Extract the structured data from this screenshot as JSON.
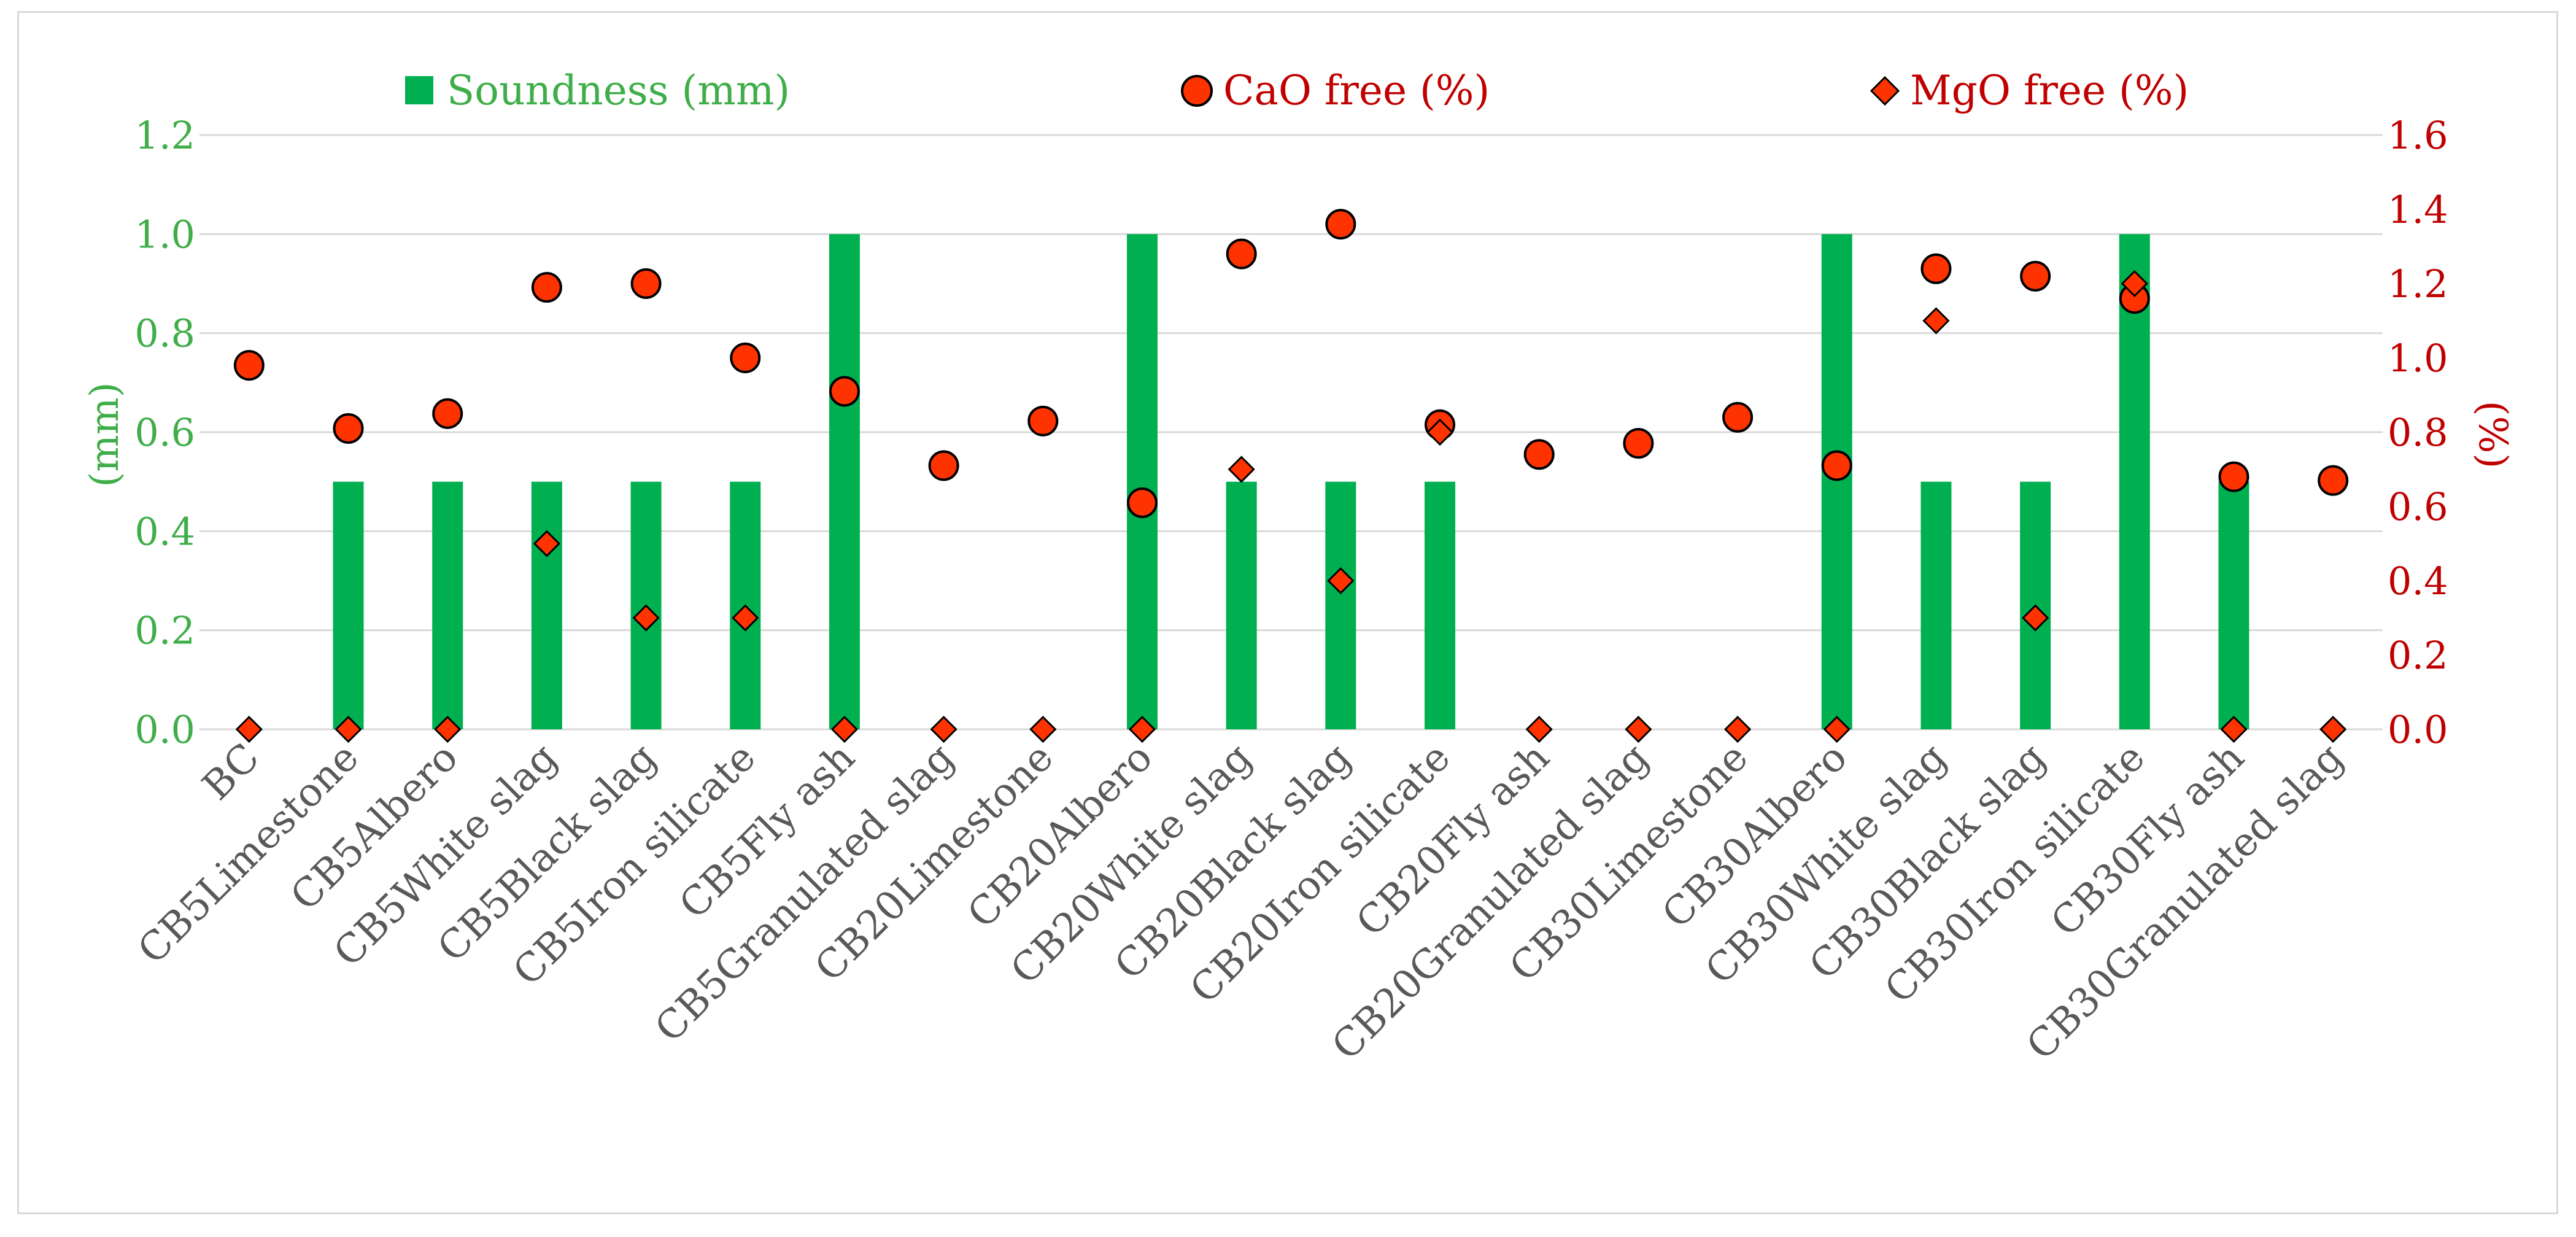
{
  "chart_data": {
    "type": "bar",
    "categories": [
      "BC",
      "CB5Limestone",
      "CB5Albero",
      "CB5White slag",
      "CB5Black slag",
      "CB5Iron silicate",
      "CB5Fly ash",
      "CB5Granulated slag",
      "CB20Limestone",
      "CB20Albero",
      "CB20White slag",
      "CB20Black slag",
      "CB20Iron silicate",
      "CB20Fly ash",
      "CB20Granulated slag",
      "CB30Limestone",
      "CB30Albero",
      "CB30White slag",
      "CB30Black slag",
      "CB30Iron silicate",
      "CB30Fly ash",
      "CB30Granulated slag"
    ],
    "series": [
      {
        "name": "Soundness (mm)",
        "type": "bar",
        "axis": "left",
        "color": "#00b050",
        "values": [
          0,
          0.5,
          0.5,
          0.5,
          0.5,
          0.5,
          1.0,
          0,
          0,
          1.0,
          0.5,
          0.5,
          0.5,
          0,
          0,
          0,
          1.0,
          0.5,
          0.5,
          1.0,
          0.5,
          0
        ]
      },
      {
        "name": "CaO free (%)",
        "type": "scatter-circle",
        "axis": "right",
        "color": "#ff3300",
        "values": [
          0.98,
          0.81,
          0.85,
          1.19,
          1.2,
          1.0,
          0.91,
          0.71,
          0.83,
          0.61,
          1.28,
          1.36,
          0.82,
          0.74,
          0.77,
          0.84,
          0.71,
          1.24,
          1.22,
          1.16,
          0.68,
          0.67
        ]
      },
      {
        "name": "MgO free (%)",
        "type": "scatter-diamond",
        "axis": "right",
        "color": "#ff3300",
        "values": [
          0,
          0,
          0,
          0.5,
          0.3,
          0.3,
          0,
          0,
          0,
          0,
          0.7,
          0.4,
          0.8,
          0,
          0,
          0,
          0,
          1.1,
          0.3,
          1.2,
          0,
          0
        ]
      }
    ],
    "y_left": {
      "label": "(mm)",
      "ylim": [
        0,
        1.2
      ],
      "ticks": [
        "0.0",
        "0.2",
        "0.4",
        "0.6",
        "0.8",
        "1.0",
        "1.2"
      ],
      "color": "#3fae49"
    },
    "y_right": {
      "label": "(%)",
      "ylim": [
        0,
        1.6
      ],
      "ticks": [
        "0.0",
        "0.2",
        "0.4",
        "0.6",
        "0.8",
        "1.0",
        "1.2",
        "1.4",
        "1.6"
      ],
      "color": "#c00000"
    },
    "grid": true,
    "legend_position": "top"
  }
}
